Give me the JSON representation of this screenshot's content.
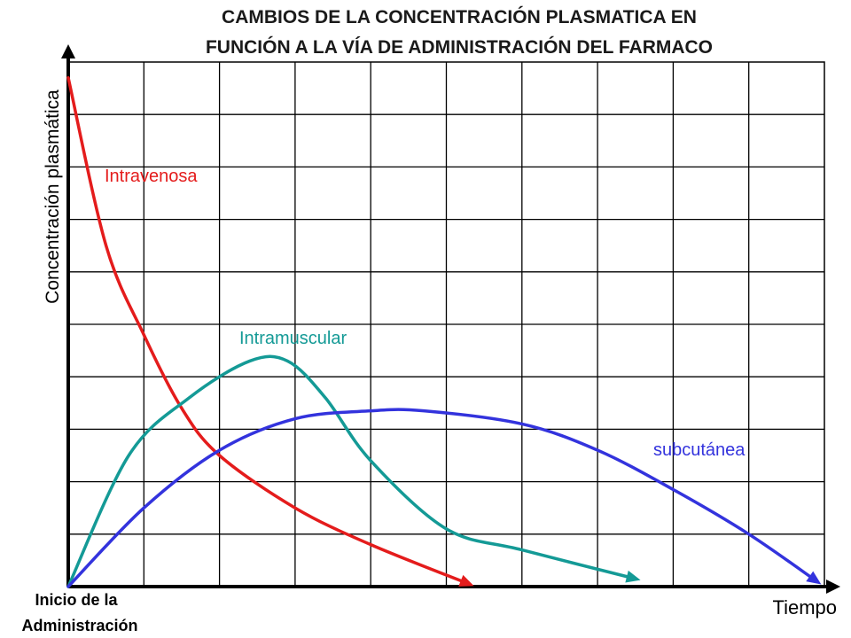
{
  "chart_data": {
    "type": "line",
    "title_lines": [
      "CAMBIOS DE LA CONCENTRACIÓN PLASMATICA EN",
      "FUNCIÓN A LA VÍA DE ADMINISTRACIÓN DEL FARMACO"
    ],
    "xlabel": "Tiempo",
    "ylabel": "Concentración plasmática",
    "origin_label_lines": [
      "Inicio de la",
      "Administración"
    ],
    "xlim": [
      0,
      10
    ],
    "ylim": [
      0,
      10
    ],
    "grid": true,
    "series": [
      {
        "name": "Intravenosa",
        "color": "#e41c1c",
        "x": [
          0,
          0.5,
          1,
          1.5,
          2,
          3,
          4,
          5.3
        ],
        "y": [
          9.7,
          6.5,
          4.8,
          3.4,
          2.5,
          1.5,
          0.8,
          0.05
        ]
      },
      {
        "name": "Intramuscular",
        "color": "#149a96",
        "x": [
          0,
          0.8,
          1.6,
          2.4,
          2.9,
          3.4,
          4,
          5,
          6,
          7.5
        ],
        "y": [
          0,
          2.5,
          3.6,
          4.3,
          4.3,
          3.6,
          2.4,
          1.1,
          0.7,
          0.15
        ]
      },
      {
        "name": "subcutánea",
        "color": "#3333dd",
        "x": [
          0,
          1,
          2,
          3,
          4,
          4.7,
          6,
          7,
          8,
          9,
          9.9
        ],
        "y": [
          0,
          1.5,
          2.6,
          3.2,
          3.35,
          3.35,
          3.1,
          2.6,
          1.85,
          1.0,
          0.1
        ]
      }
    ]
  }
}
